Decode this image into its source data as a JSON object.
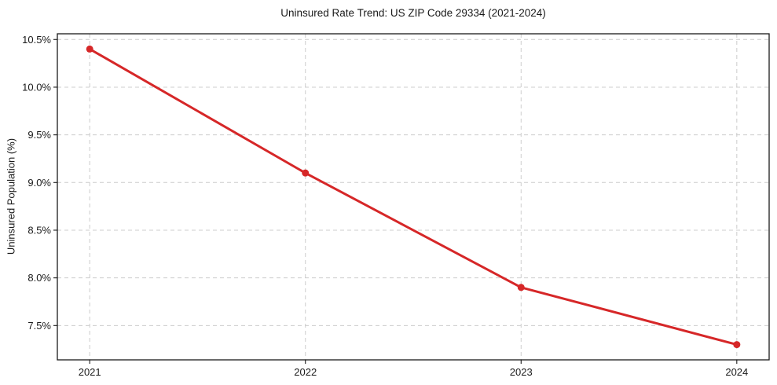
{
  "chart_data": {
    "type": "line",
    "title": "Uninsured Rate Trend: US ZIP Code 29334 (2021-2024)",
    "xlabel": "",
    "ylabel": "Uninsured Population (%)",
    "x": [
      2021,
      2022,
      2023,
      2024
    ],
    "series": [
      {
        "name": "uninsured-rate",
        "values": [
          10.4,
          9.1,
          7.9,
          7.3
        ]
      }
    ],
    "x_ticks": [
      2021,
      2022,
      2023,
      2024
    ],
    "x_tick_labels": [
      "2021",
      "2022",
      "2023",
      "2024"
    ],
    "y_ticks": [
      7.5,
      8.0,
      8.5,
      9.0,
      9.5,
      10.0,
      10.5
    ],
    "y_tick_labels": [
      "7.5%",
      "8.0%",
      "8.5%",
      "9.0%",
      "9.5%",
      "10.0%",
      "10.5%"
    ],
    "xlim": [
      2020.85,
      2024.15
    ],
    "ylim": [
      7.14,
      10.56
    ],
    "grid": true,
    "grid_style": "dashed",
    "legend": false,
    "marker": "circle",
    "colors": {
      "line": "#d62728",
      "grid": "#cccccc",
      "spine": "#1a1a1a",
      "text": "#1a1a1a",
      "background": "#ffffff"
    }
  }
}
